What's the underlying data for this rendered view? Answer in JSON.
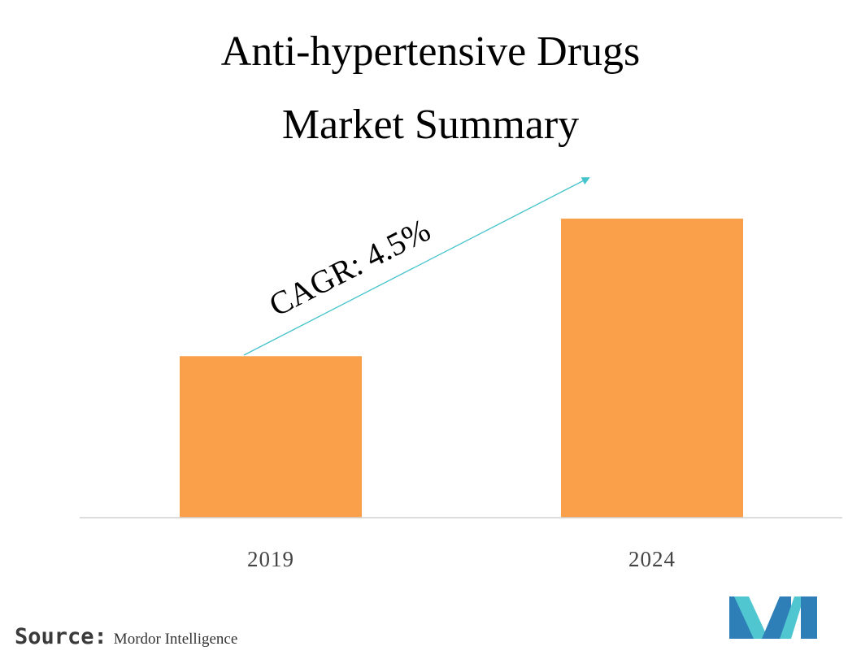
{
  "title_line1": "Anti-hypertensive Drugs",
  "title_line2": "Market Summary",
  "chart_data": {
    "type": "bar",
    "categories": [
      "2019",
      "2024"
    ],
    "values": [
      54,
      100
    ],
    "value_scale": "relative (no y-axis printed)",
    "ylim": [
      0,
      100
    ],
    "grid": false,
    "bar_color": "#FBA04A",
    "annotation": {
      "text": "CAGR: 4.5%",
      "arrow_color": "#45C3CC"
    }
  },
  "source": {
    "label": "Source:",
    "text": "Mordor Intelligence"
  },
  "logo": {
    "icon": "mordor-intelligence-logo-icon",
    "colors": [
      "#2E7FB8",
      "#4FC6D0"
    ]
  }
}
